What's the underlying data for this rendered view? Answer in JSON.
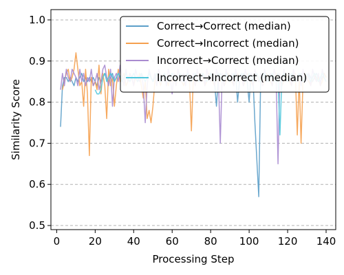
{
  "chart_data": {
    "type": "line",
    "xlabel": "Processing Step",
    "ylabel": "Similarity Score",
    "xlim": [
      -3,
      145
    ],
    "ylim": [
      0.49,
      1.025
    ],
    "xticks": [
      0,
      20,
      40,
      60,
      80,
      100,
      120,
      140
    ],
    "yticks": [
      0.5,
      0.6,
      0.7,
      0.8,
      0.9,
      1.0
    ],
    "ytick_labels": [
      "0.5",
      "0.6",
      "0.7",
      "0.8",
      "0.9",
      "1.0"
    ],
    "grid": "y-dashed",
    "legend_position": "top-right",
    "series": [
      {
        "name": "Correct→Correct (median)",
        "color": "#5b9fc9",
        "x": [
          2,
          3,
          4,
          5,
          6,
          7,
          8,
          9,
          10,
          11,
          12,
          13,
          14,
          15,
          16,
          17,
          18,
          19,
          20,
          21,
          22,
          23,
          24,
          25,
          26,
          27,
          28,
          29,
          30,
          31,
          32,
          33,
          34,
          35,
          36,
          37,
          38,
          39,
          40,
          41,
          42,
          43,
          44,
          45,
          46,
          47,
          48,
          49,
          50,
          51,
          52,
          53,
          54,
          55,
          56,
          57,
          58,
          59,
          60,
          61,
          62,
          63,
          64,
          65,
          66,
          67,
          68,
          69,
          70,
          71,
          72,
          73,
          74,
          75,
          76,
          77,
          78,
          79,
          80,
          81,
          82,
          83,
          84,
          85,
          86,
          87,
          88,
          89,
          90,
          91,
          92,
          93,
          94,
          95,
          96,
          97,
          98,
          99,
          100,
          101,
          102,
          103,
          104,
          105,
          106,
          107,
          108,
          109,
          110,
          111,
          112,
          113,
          114,
          115,
          116,
          117,
          118,
          119,
          120,
          121,
          122,
          123,
          124,
          125,
          126,
          127,
          128,
          129,
          130,
          131,
          132,
          133,
          134,
          135,
          136,
          137,
          138,
          139,
          140
        ],
        "y": [
          0.74,
          0.84,
          0.86,
          0.86,
          0.85,
          0.86,
          0.85,
          0.84,
          0.86,
          0.85,
          0.86,
          0.87,
          0.85,
          0.86,
          0.85,
          0.86,
          0.85,
          0.86,
          0.85,
          0.84,
          0.86,
          0.85,
          0.86,
          0.87,
          0.86,
          0.85,
          0.86,
          0.87,
          0.85,
          0.86,
          0.87,
          0.86,
          0.85,
          0.86,
          0.87,
          0.86,
          0.85,
          0.86,
          0.87,
          0.86,
          0.85,
          0.86,
          0.87,
          0.86,
          0.85,
          0.86,
          0.87,
          0.86,
          0.85,
          0.86,
          0.87,
          0.86,
          0.85,
          0.86,
          0.87,
          0.86,
          0.85,
          0.86,
          0.87,
          0.86,
          0.85,
          0.86,
          0.87,
          0.86,
          0.85,
          0.86,
          0.87,
          0.86,
          0.85,
          0.86,
          0.87,
          0.86,
          0.85,
          0.86,
          0.87,
          0.86,
          0.85,
          0.86,
          0.87,
          0.86,
          0.85,
          0.79,
          0.86,
          0.87,
          0.86,
          0.85,
          0.86,
          0.87,
          0.86,
          0.85,
          0.86,
          0.87,
          0.8,
          0.85,
          0.86,
          0.87,
          0.86,
          0.85,
          0.8,
          0.87,
          0.86,
          0.75,
          0.66,
          0.57,
          0.86,
          0.87,
          0.86,
          0.85,
          0.86,
          0.87,
          0.86,
          0.85,
          0.86,
          0.87,
          0.86,
          0.85,
          0.86,
          0.87,
          0.86,
          0.85,
          0.86,
          0.87,
          0.86,
          0.85,
          0.86,
          0.87,
          0.86,
          0.85,
          0.86,
          0.87,
          0.86,
          0.85,
          0.86,
          0.87,
          0.86,
          0.85,
          0.86,
          0.87,
          0.86
        ]
      },
      {
        "name": "Correct→Incorrect (median)",
        "color": "#f5a04e",
        "x": [
          3,
          4,
          5,
          6,
          7,
          8,
          9,
          10,
          11,
          12,
          13,
          14,
          15,
          16,
          17,
          18,
          19,
          20,
          21,
          22,
          23,
          24,
          25,
          26,
          27,
          28,
          29,
          30,
          31,
          32,
          33,
          34,
          35,
          36,
          37,
          38,
          39,
          40,
          41,
          42,
          43,
          44,
          45,
          46,
          47,
          48,
          49,
          50,
          51,
          52,
          53,
          54,
          55,
          56,
          57,
          58,
          59,
          60,
          61,
          62,
          63,
          64,
          65,
          66,
          67,
          68,
          69,
          70,
          71,
          72,
          73,
          74,
          75,
          76,
          77,
          78,
          79,
          80,
          81,
          82,
          83,
          84,
          85,
          86,
          87,
          88,
          89,
          90,
          91,
          92,
          93,
          94,
          95,
          96,
          97,
          98,
          99,
          100,
          101,
          102,
          103,
          104,
          105,
          106,
          107,
          108,
          109,
          110,
          111,
          112,
          113,
          114,
          115,
          116,
          117,
          118,
          119,
          120,
          121,
          122,
          123,
          124,
          125,
          126,
          127,
          128,
          129,
          130,
          131,
          132,
          133,
          134,
          135,
          136,
          137,
          138,
          139,
          140
        ],
        "y": [
          0.83,
          0.85,
          0.87,
          0.88,
          0.85,
          0.86,
          0.88,
          0.92,
          0.88,
          0.84,
          0.85,
          0.79,
          0.88,
          0.82,
          0.67,
          0.86,
          0.84,
          0.85,
          0.83,
          0.89,
          0.82,
          0.87,
          0.84,
          0.76,
          0.88,
          0.84,
          0.86,
          0.79,
          0.84,
          0.88,
          0.85,
          0.86,
          0.87,
          0.84,
          0.85,
          0.87,
          0.86,
          0.84,
          0.86,
          0.85,
          0.87,
          0.84,
          0.81,
          0.85,
          0.76,
          0.78,
          0.75,
          0.79,
          0.85,
          0.87,
          0.86,
          0.84,
          0.86,
          0.87,
          0.86,
          0.84,
          0.86,
          0.85,
          0.86,
          0.84,
          0.86,
          0.87,
          0.85,
          0.84,
          0.86,
          0.87,
          0.85,
          0.73,
          0.86,
          0.84,
          0.86,
          0.87,
          0.85,
          0.86,
          0.84,
          0.85,
          0.87,
          0.86,
          0.85,
          0.84,
          0.86,
          0.87,
          0.85,
          0.86,
          0.84,
          0.85,
          0.87,
          0.86,
          0.85,
          0.84,
          0.86,
          0.87,
          0.85,
          0.86,
          0.84,
          0.85,
          0.87,
          0.86,
          0.85,
          0.84,
          0.86,
          0.87,
          0.85,
          0.86,
          0.84,
          0.85,
          0.87,
          0.86,
          0.85,
          0.84,
          0.86,
          0.87,
          0.85,
          0.86,
          0.84,
          0.85,
          0.87,
          0.86,
          0.85,
          0.84,
          0.86,
          0.87,
          0.72,
          0.86,
          0.7,
          0.85,
          0.87,
          0.86,
          0.85,
          0.84,
          0.86,
          0.87,
          0.85,
          0.86,
          0.84,
          0.85,
          0.87,
          0.86
        ]
      },
      {
        "name": "Incorrect→Correct (median)",
        "color": "#a98bd0",
        "x": [
          2,
          3,
          4,
          5,
          6,
          7,
          8,
          9,
          10,
          11,
          12,
          13,
          14,
          15,
          16,
          17,
          18,
          19,
          20,
          21,
          22,
          23,
          24,
          25,
          26,
          27,
          28,
          29,
          30,
          31,
          32,
          33,
          34,
          35,
          36,
          37,
          38,
          39,
          40,
          41,
          42,
          43,
          44,
          45,
          46,
          47,
          48,
          49,
          50,
          51,
          52,
          53,
          54,
          55,
          56,
          57,
          58,
          59,
          60,
          61,
          62,
          63,
          64,
          65,
          66,
          67,
          68,
          69,
          70,
          71,
          72,
          73,
          74,
          75,
          76,
          77,
          78,
          79,
          80,
          81,
          82,
          83,
          84,
          85,
          86,
          87,
          88,
          89,
          90,
          91,
          92,
          93,
          94,
          95,
          96,
          97,
          98,
          99,
          100,
          101,
          102,
          103,
          104,
          105,
          106,
          107,
          108,
          109,
          110,
          111,
          112,
          113,
          114,
          115,
          116,
          117,
          118,
          119,
          120,
          121,
          122,
          123,
          124,
          125,
          126,
          127,
          128,
          129,
          130,
          131,
          132,
          133,
          134,
          135,
          136,
          137,
          138,
          139,
          140
        ],
        "y": [
          0.83,
          0.87,
          0.84,
          0.88,
          0.86,
          0.85,
          0.88,
          0.87,
          0.86,
          0.84,
          0.88,
          0.85,
          0.87,
          0.84,
          0.86,
          0.85,
          0.88,
          0.84,
          0.85,
          0.87,
          0.83,
          0.85,
          0.88,
          0.89,
          0.86,
          0.84,
          0.88,
          0.79,
          0.86,
          0.87,
          0.85,
          0.89,
          0.86,
          0.84,
          0.88,
          0.85,
          0.87,
          0.86,
          0.84,
          0.88,
          0.86,
          0.85,
          0.87,
          0.84,
          0.75,
          0.84,
          0.88,
          0.86,
          0.85,
          0.87,
          0.84,
          0.88,
          0.86,
          0.85,
          0.87,
          0.84,
          0.88,
          0.86,
          0.82,
          0.87,
          0.84,
          0.88,
          0.86,
          0.85,
          0.87,
          0.84,
          0.88,
          0.86,
          0.85,
          0.87,
          0.84,
          0.88,
          0.86,
          0.85,
          0.87,
          0.84,
          0.88,
          0.86,
          0.85,
          0.87,
          0.84,
          0.88,
          0.86,
          0.7,
          0.87,
          0.84,
          0.88,
          0.86,
          0.85,
          0.87,
          0.84,
          0.88,
          0.86,
          0.85,
          0.87,
          0.84,
          0.88,
          0.86,
          0.85,
          0.87,
          0.84,
          0.88,
          0.86,
          0.85,
          0.87,
          0.84,
          0.88,
          0.86,
          0.85,
          0.87,
          0.84,
          0.88,
          0.86,
          0.65,
          0.87,
          0.84,
          0.88,
          0.86,
          0.85,
          0.87,
          0.84,
          0.88,
          0.86,
          0.85,
          0.87,
          0.84,
          0.88,
          0.86,
          0.85,
          0.87,
          0.84,
          0.88,
          0.86,
          0.85,
          0.87,
          0.84,
          0.88,
          0.86,
          0.85
        ]
      },
      {
        "name": "Incorrect→Incorrect (median)",
        "color": "#4fc6dc",
        "x": [
          20,
          21,
          22,
          23,
          24,
          25,
          26,
          27,
          28,
          29,
          30,
          31,
          32,
          33,
          34,
          35,
          36,
          37,
          38,
          39,
          40,
          41,
          42,
          43,
          44,
          45,
          46,
          47,
          48,
          49,
          50,
          51,
          52,
          53,
          54,
          55,
          56,
          57,
          58,
          59,
          60,
          61,
          62,
          63,
          64,
          65,
          66,
          67,
          68,
          69,
          70,
          71,
          72,
          73,
          74,
          75,
          76,
          77,
          78,
          79,
          80,
          81,
          82,
          83,
          84,
          85,
          86,
          87,
          88,
          89,
          90,
          91,
          92,
          93,
          94,
          95,
          96,
          97,
          98,
          99,
          100,
          101,
          102,
          103,
          104,
          105,
          106,
          107,
          108,
          109,
          110,
          111,
          112,
          113,
          114,
          115,
          116,
          117,
          118,
          119,
          120,
          121,
          122,
          123,
          124,
          125,
          126,
          127,
          128,
          129,
          130,
          131,
          132,
          133,
          134,
          135,
          136,
          137,
          138,
          139,
          140
        ],
        "y": [
          0.83,
          0.82,
          0.82,
          0.83,
          0.86,
          0.87,
          0.85,
          0.86,
          0.87,
          0.86,
          0.85,
          0.86,
          0.87,
          0.86,
          0.85,
          0.86,
          0.87,
          0.86,
          0.85,
          0.86,
          0.87,
          0.86,
          0.85,
          0.86,
          0.87,
          0.86,
          0.85,
          0.86,
          0.87,
          0.86,
          0.85,
          0.86,
          0.87,
          0.86,
          0.85,
          0.86,
          0.87,
          0.86,
          0.85,
          0.86,
          0.87,
          0.86,
          0.85,
          0.86,
          0.87,
          0.86,
          0.85,
          0.86,
          0.87,
          0.86,
          0.85,
          0.86,
          0.87,
          0.86,
          0.85,
          0.86,
          0.87,
          0.86,
          0.85,
          0.86,
          0.87,
          0.86,
          0.85,
          0.86,
          0.87,
          0.86,
          0.85,
          0.86,
          0.87,
          0.86,
          0.85,
          0.86,
          0.87,
          0.86,
          0.85,
          0.86,
          0.87,
          0.86,
          0.85,
          0.86,
          0.87,
          0.86,
          0.85,
          0.86,
          0.87,
          0.86,
          0.85,
          0.86,
          0.87,
          0.86,
          0.85,
          0.86,
          0.87,
          0.86,
          0.85,
          0.86,
          0.72,
          0.86,
          0.87,
          0.86,
          0.85,
          0.86,
          0.87,
          0.86,
          0.85,
          0.86,
          0.87,
          0.86,
          0.85,
          0.86,
          0.87,
          0.86,
          0.85,
          0.86,
          0.87,
          0.86,
          0.85,
          0.86,
          0.87,
          0.86,
          0.85
        ]
      }
    ]
  }
}
